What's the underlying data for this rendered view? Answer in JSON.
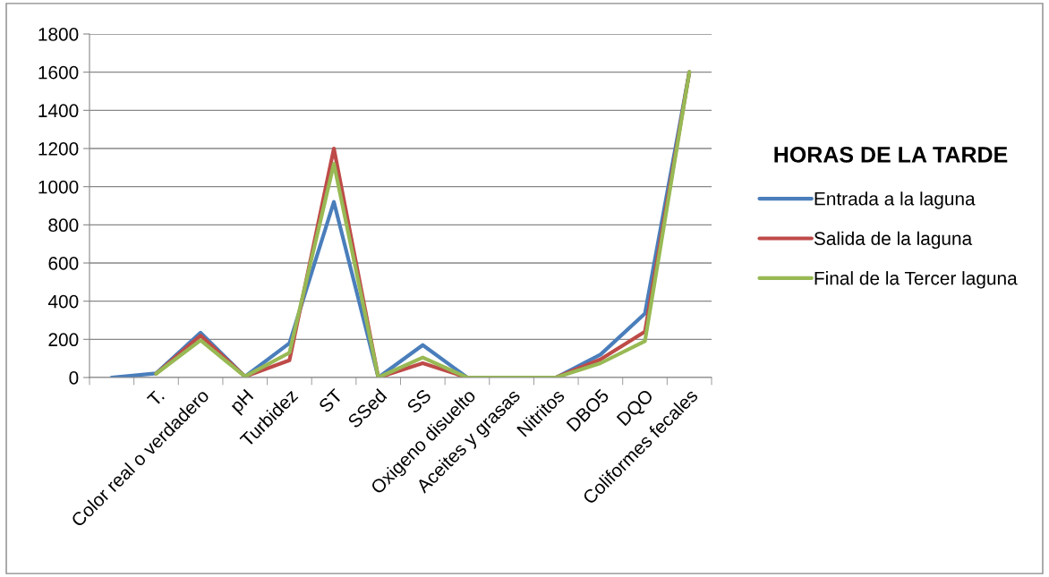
{
  "chart_data": {
    "type": "line",
    "title": "HORAS DE LA TARDE",
    "categories": [
      null,
      "T.",
      "Color real o verdadero",
      "pH",
      "Turbidez",
      "ST",
      "SSed",
      "SS",
      "Oxigeno disuelto",
      "Aceites y grasas",
      "Nitritos",
      "DBO5",
      "DQO",
      "Coliformes fecales"
    ],
    "series": [
      {
        "name": "Entrada a la laguna",
        "color": "#4a7ebb",
        "values": [
          0,
          22,
          235,
          5,
          180,
          920,
          0,
          170,
          0,
          0,
          0,
          120,
          335,
          1600
        ]
      },
      {
        "name": "Salida de la laguna",
        "color": "#be4b48",
        "values": [
          null,
          20,
          220,
          5,
          90,
          1200,
          0,
          75,
          0,
          0,
          0,
          95,
          240,
          1600
        ]
      },
      {
        "name": "Final de la Tercer laguna",
        "color": "#98b954",
        "values": [
          null,
          20,
          195,
          5,
          130,
          1120,
          0,
          105,
          0,
          0,
          0,
          75,
          190,
          1600
        ]
      }
    ],
    "ylim": [
      0,
      1800
    ],
    "yticks": [
      0,
      200,
      400,
      600,
      800,
      1000,
      1200,
      1400,
      1600,
      1800
    ],
    "grid": "y",
    "legend": "right",
    "marker": "none",
    "line_style": "solid"
  }
}
